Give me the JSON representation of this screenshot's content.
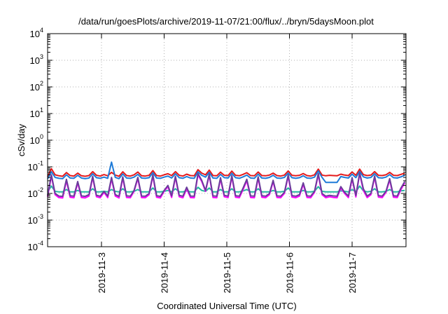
{
  "chart_data": {
    "type": "line",
    "title": "/data/run/goesPlots/archive/2019-11-07/21:00/flux/../bryn/5daysMoon.plot",
    "xlabel": "Coordinated Universal Time (UTC)",
    "ylabel": "cSv/day",
    "yscale": "log",
    "ylim": [
      0.0001,
      10000
    ],
    "xlim": [
      2.14,
      7.86
    ],
    "grid": true,
    "x_ticks": [
      {
        "value": 3,
        "label": "2019-11-3"
      },
      {
        "value": 4,
        "label": "2019-11-4"
      },
      {
        "value": 5,
        "label": "2019-11-5"
      },
      {
        "value": 6,
        "label": "2019-11-6"
      },
      {
        "value": 7,
        "label": "2019-11-7"
      }
    ],
    "y_ticks": [
      {
        "value": 0.0001,
        "base": "10",
        "exp": "-4"
      },
      {
        "value": 0.001,
        "base": "10",
        "exp": "-3"
      },
      {
        "value": 0.01,
        "base": "10",
        "exp": "-2"
      },
      {
        "value": 0.1,
        "base": "10",
        "exp": "-1"
      },
      {
        "value": 1,
        "base": "10",
        "exp": "0"
      },
      {
        "value": 10,
        "base": "10",
        "exp": "1"
      },
      {
        "value": 100,
        "base": "10",
        "exp": "2"
      },
      {
        "value": 1000,
        "base": "10",
        "exp": "3"
      },
      {
        "value": 10000,
        "base": "10",
        "exp": "4"
      }
    ],
    "x": [
      2.14,
      2.2,
      2.26,
      2.32,
      2.38,
      2.44,
      2.5,
      2.56,
      2.62,
      2.68,
      2.74,
      2.8,
      2.86,
      2.92,
      2.98,
      3.04,
      3.1,
      3.16,
      3.22,
      3.28,
      3.34,
      3.4,
      3.46,
      3.52,
      3.58,
      3.64,
      3.7,
      3.76,
      3.82,
      3.88,
      3.94,
      4.0,
      4.06,
      4.12,
      4.18,
      4.24,
      4.3,
      4.36,
      4.42,
      4.48,
      4.54,
      4.6,
      4.66,
      4.72,
      4.78,
      4.84,
      4.9,
      4.96,
      5.02,
      5.08,
      5.14,
      5.2,
      5.26,
      5.32,
      5.38,
      5.44,
      5.5,
      5.56,
      5.62,
      5.68,
      5.74,
      5.8,
      5.86,
      5.92,
      5.98,
      6.04,
      6.1,
      6.16,
      6.22,
      6.28,
      6.34,
      6.4,
      6.46,
      6.52,
      6.58,
      6.64,
      6.7,
      6.76,
      6.82,
      6.88,
      6.94,
      7.0,
      7.06,
      7.12,
      7.18,
      7.24,
      7.3,
      7.36,
      7.42,
      7.48,
      7.54,
      7.6,
      7.66,
      7.72,
      7.78,
      7.84
    ],
    "series": [
      {
        "color": "#e41a1c",
        "values": [
          0.042,
          0.085,
          0.05,
          0.046,
          0.044,
          0.061,
          0.047,
          0.045,
          0.058,
          0.046,
          0.044,
          0.047,
          0.066,
          0.048,
          0.045,
          0.051,
          0.046,
          0.062,
          0.049,
          0.044,
          0.065,
          0.047,
          0.045,
          0.05,
          0.064,
          0.046,
          0.045,
          0.048,
          0.072,
          0.047,
          0.045,
          0.05,
          0.055,
          0.047,
          0.066,
          0.048,
          0.045,
          0.053,
          0.047,
          0.046,
          0.078,
          0.058,
          0.05,
          0.075,
          0.047,
          0.046,
          0.063,
          0.048,
          0.047,
          0.069,
          0.048,
          0.046,
          0.052,
          0.06,
          0.047,
          0.046,
          0.064,
          0.047,
          0.046,
          0.049,
          0.058,
          0.047,
          0.045,
          0.049,
          0.07,
          0.048,
          0.046,
          0.048,
          0.056,
          0.047,
          0.045,
          0.05,
          0.082,
          0.049,
          0.046,
          0.048,
          0.047,
          0.046,
          0.053,
          0.049,
          0.047,
          0.064,
          0.048,
          0.082,
          0.051,
          0.047,
          0.049,
          0.066,
          0.048,
          0.047,
          0.05,
          0.062,
          0.048,
          0.047,
          0.052,
          0.058
        ]
      },
      {
        "color": "#1f7bd8",
        "values": [
          0.035,
          0.065,
          0.04,
          0.037,
          0.036,
          0.05,
          0.038,
          0.037,
          0.048,
          0.038,
          0.036,
          0.038,
          0.055,
          0.039,
          0.037,
          0.041,
          0.037,
          0.15,
          0.04,
          0.036,
          0.054,
          0.038,
          0.037,
          0.041,
          0.052,
          0.038,
          0.037,
          0.039,
          0.06,
          0.038,
          0.037,
          0.041,
          0.045,
          0.038,
          0.055,
          0.039,
          0.037,
          0.043,
          0.038,
          0.037,
          0.065,
          0.048,
          0.041,
          0.062,
          0.038,
          0.037,
          0.052,
          0.039,
          0.038,
          0.057,
          0.039,
          0.037,
          0.042,
          0.049,
          0.038,
          0.037,
          0.053,
          0.038,
          0.037,
          0.04,
          0.048,
          0.038,
          0.037,
          0.04,
          0.058,
          0.039,
          0.037,
          0.039,
          0.046,
          0.038,
          0.037,
          0.041,
          0.07,
          0.04,
          0.026,
          0.026,
          0.026,
          0.026,
          0.043,
          0.04,
          0.038,
          0.053,
          0.039,
          0.068,
          0.042,
          0.038,
          0.04,
          0.055,
          0.039,
          0.038,
          0.041,
          0.051,
          0.039,
          0.038,
          0.042,
          0.048
        ]
      },
      {
        "color": "#25b7a0",
        "values": [
          0.0115,
          0.019,
          0.012,
          0.0115,
          0.0115,
          0.014,
          0.0115,
          0.0115,
          0.013,
          0.0115,
          0.0115,
          0.0115,
          0.015,
          0.0115,
          0.0115,
          0.012,
          0.0115,
          0.014,
          0.012,
          0.0115,
          0.015,
          0.0115,
          0.0115,
          0.012,
          0.014,
          0.0115,
          0.0115,
          0.0115,
          0.016,
          0.0115,
          0.0115,
          0.012,
          0.013,
          0.0115,
          0.015,
          0.0115,
          0.0115,
          0.0125,
          0.0115,
          0.0115,
          0.017,
          0.013,
          0.012,
          0.016,
          0.0115,
          0.0115,
          0.014,
          0.0115,
          0.0115,
          0.015,
          0.0115,
          0.0115,
          0.0125,
          0.014,
          0.0115,
          0.0115,
          0.015,
          0.0115,
          0.0115,
          0.0115,
          0.013,
          0.0115,
          0.0115,
          0.012,
          0.016,
          0.0115,
          0.0115,
          0.0115,
          0.013,
          0.0115,
          0.0115,
          0.012,
          0.018,
          0.012,
          0.0115,
          0.0115,
          0.0115,
          0.0115,
          0.0125,
          0.012,
          0.0115,
          0.014,
          0.0115,
          0.019,
          0.0125,
          0.0115,
          0.012,
          0.015,
          0.0115,
          0.0115,
          0.012,
          0.014,
          0.0115,
          0.0115,
          0.0125,
          0.013
        ]
      },
      {
        "color": "#ff00ff",
        "values": [
          0.0075,
          0.045,
          0.009,
          0.007,
          0.0068,
          0.03,
          0.0072,
          0.0069,
          0.025,
          0.0071,
          0.0068,
          0.008,
          0.04,
          0.0075,
          0.0069,
          0.011,
          0.007,
          0.035,
          0.008,
          0.0068,
          0.038,
          0.0071,
          0.0069,
          0.012,
          0.036,
          0.007,
          0.0069,
          0.009,
          0.045,
          0.0072,
          0.0068,
          0.012,
          0.018,
          0.0071,
          0.04,
          0.0075,
          0.0069,
          0.015,
          0.007,
          0.0069,
          0.05,
          0.028,
          0.012,
          0.048,
          0.0071,
          0.0069,
          0.035,
          0.0075,
          0.007,
          0.042,
          0.0072,
          0.0069,
          0.014,
          0.03,
          0.0071,
          0.0069,
          0.038,
          0.0072,
          0.0069,
          0.009,
          0.028,
          0.0071,
          0.0069,
          0.01,
          0.044,
          0.0073,
          0.0069,
          0.008,
          0.022,
          0.0071,
          0.0069,
          0.011,
          0.05,
          0.009,
          0.0069,
          0.0075,
          0.0071,
          0.0069,
          0.016,
          0.01,
          0.007,
          0.035,
          0.0074,
          0.055,
          0.013,
          0.007,
          0.009,
          0.04,
          0.0073,
          0.007,
          0.011,
          0.032,
          0.0072,
          0.007,
          0.014,
          0.025
        ]
      },
      {
        "color": "#6a3d9a",
        "values": [
          0.0085,
          0.05,
          0.01,
          0.008,
          0.0078,
          0.034,
          0.0082,
          0.0079,
          0.028,
          0.0081,
          0.0078,
          0.009,
          0.044,
          0.0085,
          0.0079,
          0.012,
          0.008,
          0.04,
          0.009,
          0.0078,
          0.042,
          0.0081,
          0.0079,
          0.013,
          0.04,
          0.008,
          0.0079,
          0.01,
          0.05,
          0.0082,
          0.0078,
          0.013,
          0.02,
          0.0081,
          0.044,
          0.0085,
          0.0079,
          0.017,
          0.008,
          0.0079,
          0.056,
          0.031,
          0.013,
          0.053,
          0.0081,
          0.0079,
          0.039,
          0.0085,
          0.008,
          0.047,
          0.0082,
          0.0079,
          0.016,
          0.034,
          0.0081,
          0.0079,
          0.042,
          0.0082,
          0.0079,
          0.01,
          0.031,
          0.0081,
          0.0079,
          0.011,
          0.049,
          0.0083,
          0.0079,
          0.009,
          0.025,
          0.0081,
          0.0079,
          0.012,
          0.056,
          0.01,
          0.0079,
          0.0085,
          0.0081,
          0.0079,
          0.018,
          0.011,
          0.008,
          0.039,
          0.0084,
          0.06,
          0.015,
          0.008,
          0.01,
          0.045,
          0.0083,
          0.008,
          0.012,
          0.036,
          0.0082,
          0.008,
          0.016,
          0.028
        ]
      }
    ]
  }
}
